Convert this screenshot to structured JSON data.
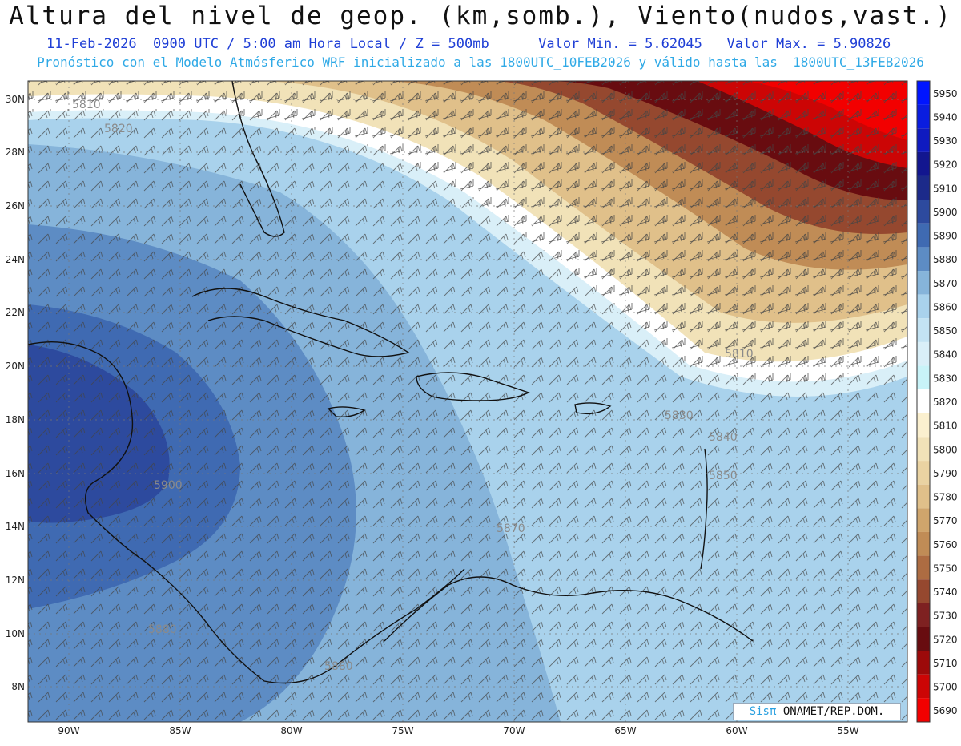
{
  "header": {
    "title": "Altura del nivel de geop. (km,somb.), Viento(nudos,vast.)",
    "date_line": "11-Feb-2026  0900 UTC / 5:00 am Hora Local / Z = 500mb",
    "min_label": "Valor Min. = 5.62045",
    "max_label": "Valor Max. = 5.90826",
    "model_line": "Pronóstico con el Modelo Atmósferico WRF inicializado a las 1800UTC_10FEB2026 y válido hasta las  1800UTC_13FEB2026"
  },
  "map": {
    "lon_ticks": [
      "90W",
      "85W",
      "80W",
      "75W",
      "70W",
      "65W",
      "60W",
      "55W"
    ],
    "lat_ticks": [
      "30N",
      "28N",
      "26N",
      "24N",
      "22N",
      "20N",
      "18N",
      "16N",
      "14N",
      "12N",
      "10N",
      "8N"
    ],
    "contour_labels": [
      "5810",
      "5820",
      "5810",
      "5830",
      "5840",
      "5850",
      "5870",
      "5900",
      "5880",
      "5880"
    ]
  },
  "colorbar": {
    "levels": [
      "5950",
      "5940",
      "5930",
      "5920",
      "5910",
      "5900",
      "5890",
      "5880",
      "5870",
      "5860",
      "5850",
      "5840",
      "5830",
      "5820",
      "5810",
      "5800",
      "5790",
      "5780",
      "5770",
      "5760",
      "5750",
      "5740",
      "5730",
      "5720",
      "5710",
      "5700",
      "5690"
    ],
    "colors": [
      "#0015ff",
      "#0a1de0",
      "#0f1ac0",
      "#12168f",
      "#1c2a8a",
      "#2d4a9e",
      "#3f6ab2",
      "#5d8cc4",
      "#86b4da",
      "#a9d2ec",
      "#c3e3f3",
      "#d9eff8",
      "#c8f3f8",
      "#ffffff",
      "#fbf0cf",
      "#f1e2b8",
      "#ead3a2",
      "#e0c08a",
      "#cfa56c",
      "#c08c56",
      "#ad6c42",
      "#95482f",
      "#7e2121",
      "#680c10",
      "#9c0a0a",
      "#cc0505",
      "#f20000"
    ]
  },
  "footer": {
    "logo_text": "Sisπ",
    "credit_text": " ONAMET/REP.DOM."
  }
}
